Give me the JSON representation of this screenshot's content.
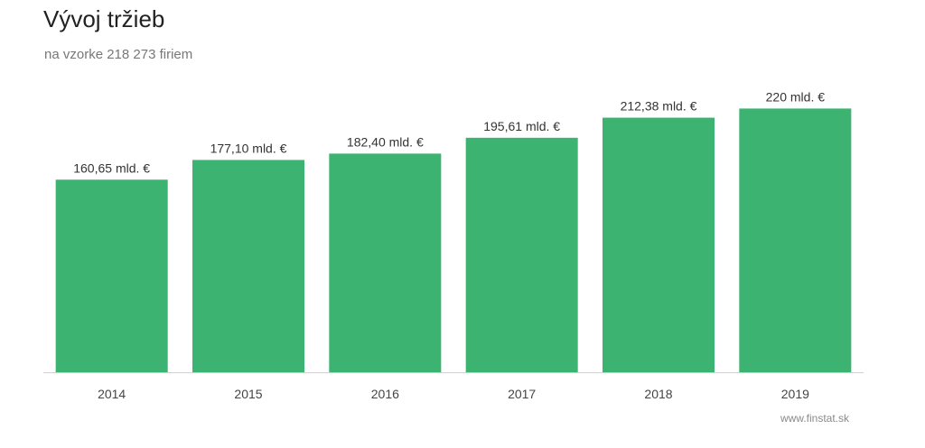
{
  "chart_data": {
    "type": "bar",
    "title": "Vývoj tržieb",
    "subtitle": "na vzorke 218 273 firiem",
    "categories": [
      "2014",
      "2015",
      "2016",
      "2017",
      "2018",
      "2019"
    ],
    "values": [
      160.65,
      177.1,
      182.4,
      195.61,
      212.38,
      220
    ],
    "data_labels": [
      "160,65 mld. €",
      "177,10 mld. €",
      "182,40 mld. €",
      "195,61 mld. €",
      "212,38 mld. €",
      "220 mld. €"
    ],
    "ylim": [
      0,
      300
    ],
    "grid": false,
    "legend": "none",
    "bar_color": "#3cb371",
    "xlabel": "",
    "ylabel": ""
  },
  "source": "www.finstat.sk"
}
